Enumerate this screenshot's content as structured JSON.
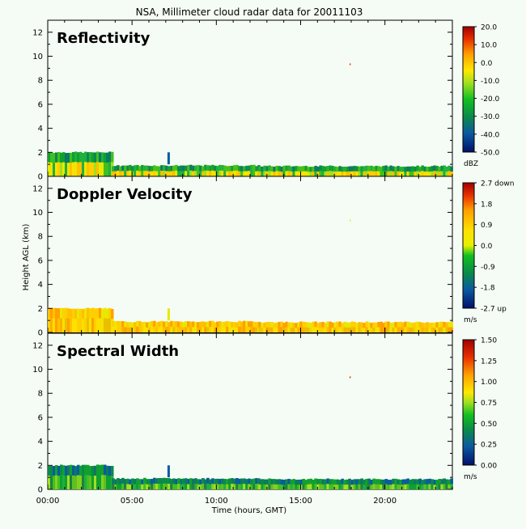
{
  "title": "NSA, Millimeter cloud radar data for 20011103",
  "xlabel": "Time (hours, GMT)",
  "ylabel": "Height AGL (km)",
  "x_ticks": [
    "00:00",
    "05:00",
    "10:00",
    "15:00",
    "20:00"
  ],
  "y_ticks": [
    "0",
    "2",
    "4",
    "6",
    "8",
    "10",
    "12"
  ],
  "panels": [
    {
      "name": "Reflectivity",
      "unit": "dBZ",
      "colorbar_labels": [
        "20.0",
        "10.0",
        "0.0",
        "-10.0",
        "-20.0",
        "-30.0",
        "-40.0",
        "-50.0"
      ],
      "colorbar_range": [
        -50,
        20
      ]
    },
    {
      "name": "Doppler Velocity",
      "unit": "m/s",
      "colorbar_labels": [
        "2.7 down",
        "1.8",
        "0.9",
        "0.0",
        "-0.9",
        "-1.8",
        "-2.7 up"
      ],
      "colorbar_range": [
        -2.7,
        2.7
      ]
    },
    {
      "name": "Spectral Width",
      "unit": "m/s",
      "colorbar_labels": [
        "1.50",
        "1.25",
        "1.00",
        "0.75",
        "0.50",
        "0.25",
        "0.00"
      ],
      "colorbar_range": [
        0,
        1.5
      ]
    }
  ],
  "chart_data": {
    "type": "heatmap",
    "title": "NSA, Millimeter cloud radar data for 20011103",
    "xlabel": "Time (hours, GMT)",
    "ylabel": "Height AGL (km)",
    "xlim_hours": [
      0,
      24
    ],
    "ylim_km": [
      0,
      13
    ],
    "cloud_layers": [
      {
        "start_hour": 0.0,
        "end_hour": 3.8,
        "bottom_km": 0.0,
        "top_km": 2.0
      },
      {
        "start_hour": 3.8,
        "end_hour": 12.5,
        "bottom_km": 0.0,
        "top_km": 0.9
      },
      {
        "start_hour": 12.5,
        "end_hour": 24.0,
        "bottom_km": 0.0,
        "top_km": 0.85
      }
    ],
    "features": [
      {
        "hour": 7.1,
        "bottom_km": 1.0,
        "top_km": 2.0,
        "note": "isolated streak"
      },
      {
        "hour": 17.9,
        "height_km": 9.4,
        "note": "isolated pixel"
      }
    ]
  }
}
